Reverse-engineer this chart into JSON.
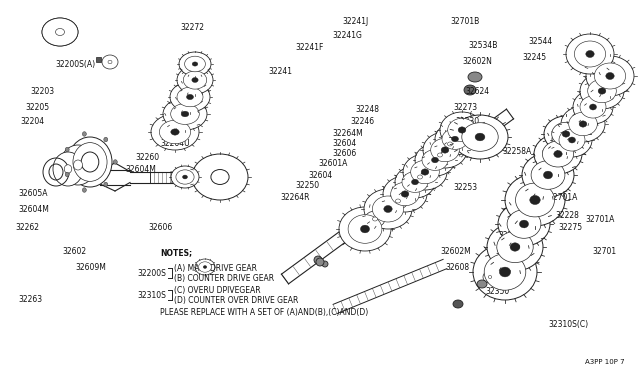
{
  "bg_color": "#ffffff",
  "line_color": "#222222",
  "text_color": "#111111",
  "footer_code": "A3PP 10P 7",
  "notes_header": "NOTES;",
  "note1_label": "32200S",
  "note1a": "(A) MAIN DRIVE GEAR",
  "note1b": "(B) COUNTER DRIVE GEAR",
  "note2_label": "32310S",
  "note2a": "(C) OVERU DPIVEGEAR",
  "note2b": "(D) COUNTER OVER DRIVE GEAR",
  "footer_note": "PLEASE REPLACE WITH A SET OF (A)AND(B),(C)AND(D)",
  "fig_w": 6.4,
  "fig_h": 3.72,
  "dpi": 100
}
